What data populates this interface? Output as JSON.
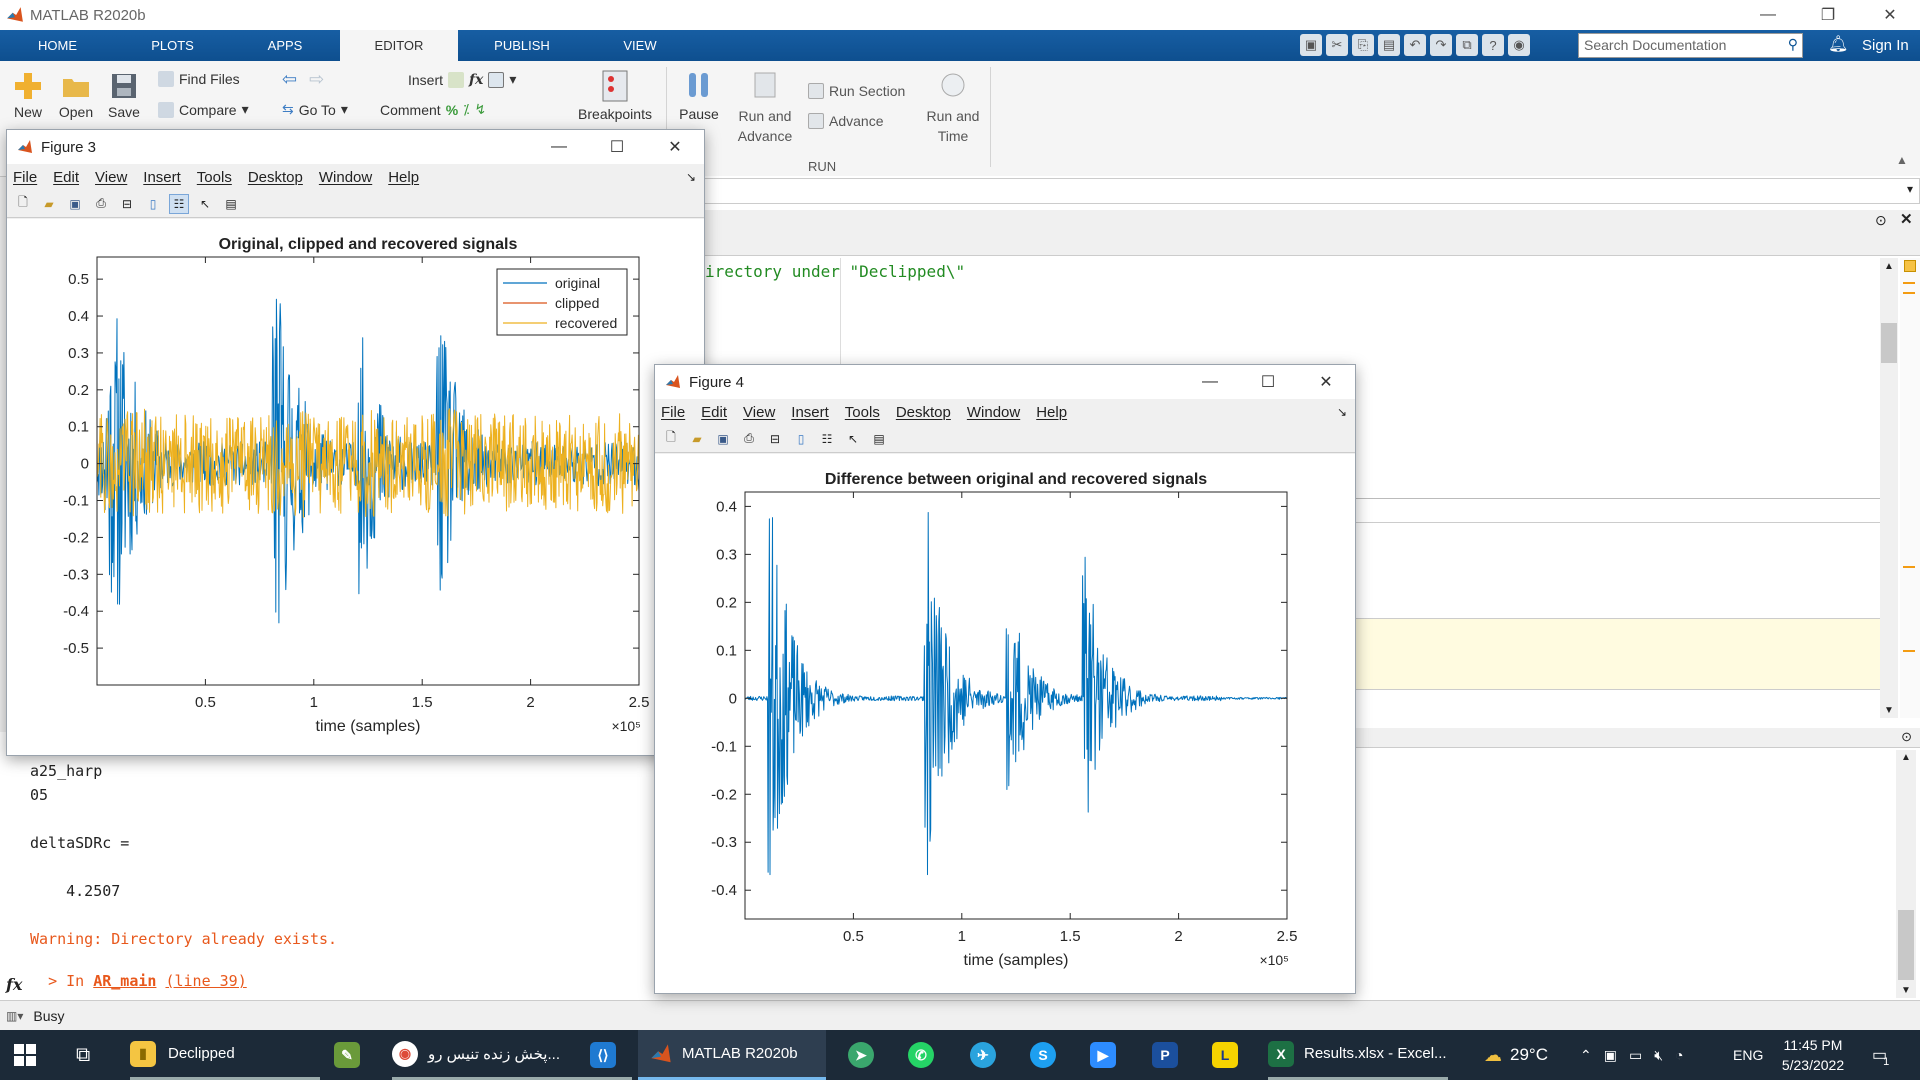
{
  "app": {
    "window_title": "MATLAB R2020b",
    "tabs": [
      "HOME",
      "PLOTS",
      "APPS",
      "EDITOR",
      "PUBLISH",
      "VIEW"
    ],
    "active_tab": "EDITOR",
    "search_placeholder": "Search Documentation",
    "sign_in": "Sign In"
  },
  "ribbon": {
    "new": "New",
    "open": "Open",
    "save": "Save",
    "find_files": "Find Files",
    "compare": "Compare",
    "go_to": "Go To",
    "insert": "Insert",
    "comment": "Comment",
    "breakpoints": "Breakpoints",
    "pause": "Pause",
    "run_and_advance": "Run and Advance",
    "run_section": "Run Section",
    "advance": "Advance",
    "run_and_time": "Run and Time",
    "run_group": "RUN"
  },
  "editor": {
    "code_fragment": "irectory under \"Declipped\\\""
  },
  "command_window": {
    "lines": [
      "a25_harp",
      "05",
      "",
      "deltaSDRc =",
      "",
      "    4.2507",
      ""
    ],
    "warning": "Warning: Directory already exists.",
    "trace_prefix": "> In ",
    "trace_func": "AR_main",
    "trace_line": "(line 39)"
  },
  "status": {
    "text": "Busy"
  },
  "figure3": {
    "title": "Figure 3",
    "menu": [
      "File",
      "Edit",
      "View",
      "Insert",
      "Tools",
      "Desktop",
      "Window",
      "Help"
    ]
  },
  "figure4": {
    "title": "Figure 4",
    "menu": [
      "File",
      "Edit",
      "View",
      "Insert",
      "Tools",
      "Desktop",
      "Window",
      "Help"
    ]
  },
  "chart_data": [
    {
      "type": "line",
      "title": "Original, clipped and recovered signals",
      "xlabel": "time (samples)",
      "ylabel": "",
      "x_exponent": "×10⁵",
      "xlim": [
        0,
        2.5
      ],
      "ylim": [
        -0.6,
        0.56
      ],
      "xticks": [
        0.5,
        1,
        1.5,
        2,
        2.5
      ],
      "xtick_labels": [
        "0.5",
        "1",
        "1.5",
        "2",
        "2.5"
      ],
      "yticks": [
        -0.5,
        -0.4,
        -0.3,
        -0.2,
        -0.1,
        0,
        0.1,
        0.2,
        0.3,
        0.4,
        0.5
      ],
      "ytick_labels": [
        "-0.5",
        "-0.4",
        "-0.3",
        "-0.2",
        "-0.1",
        "0",
        "0.1",
        "0.2",
        "0.3",
        "0.4",
        "0.5"
      ],
      "legend_position": "top-right",
      "series": [
        {
          "name": "original",
          "color": "#0072BD",
          "envelope_peaks": [
            [
              0.05,
              0.43
            ],
            [
              0.1,
              0.42
            ],
            [
              0.82,
              0.55
            ],
            [
              1.22,
              0.36
            ],
            [
              1.58,
              0.41
            ],
            [
              2.5,
              0.08
            ]
          ]
        },
        {
          "name": "clipped",
          "color": "#D95319"
        },
        {
          "name": "recovered",
          "color": "#EDB120",
          "clip_level": 0.15
        }
      ]
    },
    {
      "type": "line",
      "title": "Difference between original and recovered signals",
      "xlabel": "time (samples)",
      "ylabel": "",
      "x_exponent": "×10⁵",
      "xlim": [
        0,
        2.5
      ],
      "ylim": [
        -0.46,
        0.43
      ],
      "xticks": [
        0.5,
        1,
        1.5,
        2,
        2.5
      ],
      "xtick_labels": [
        "0.5",
        "1",
        "1.5",
        "2",
        "2.5"
      ],
      "yticks": [
        -0.4,
        -0.3,
        -0.2,
        -0.1,
        0,
        0.1,
        0.2,
        0.3,
        0.4
      ],
      "ytick_labels": [
        "-0.4",
        "-0.3",
        "-0.2",
        "-0.1",
        "0",
        "0.1",
        "0.2",
        "0.3",
        "0.4"
      ],
      "series": [
        {
          "color": "#0072BD",
          "envelope_peaks": [
            [
              0.12,
              0.43
            ],
            [
              0.84,
              0.41
            ],
            [
              1.22,
              0.23
            ],
            [
              1.57,
              0.31
            ],
            [
              2.2,
              0.0
            ]
          ]
        }
      ]
    }
  ],
  "taskbar": {
    "items": [
      "Declipped",
      "پخش زنده تنیس رو...",
      "MATLAB R2020b",
      "Results.xlsx - Excel..."
    ],
    "weather": "29°C",
    "lang": "ENG",
    "time": "11:45 PM",
    "date": "5/23/2022",
    "notif_count": "1"
  }
}
